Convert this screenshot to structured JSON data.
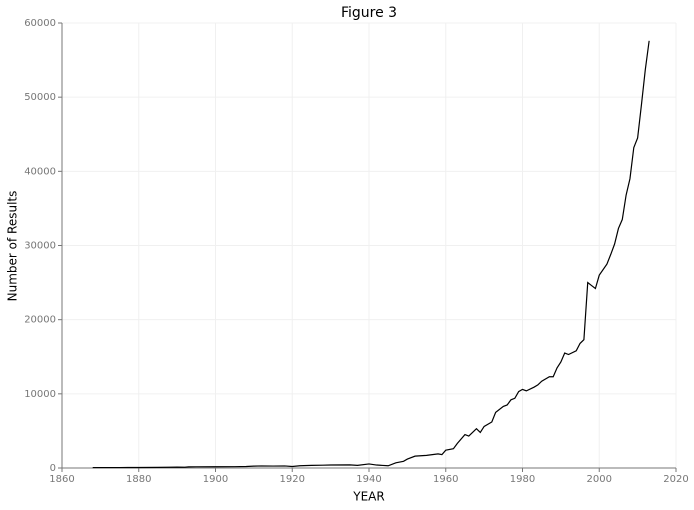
{
  "chart_data": {
    "type": "line",
    "title": "Figure 3",
    "x_label": "YEAR",
    "y_label": "Number of Results",
    "x": [
      1868,
      1875,
      1880,
      1885,
      1888,
      1890,
      1892,
      1893,
      1895,
      1900,
      1905,
      1908,
      1910,
      1912,
      1915,
      1918,
      1920,
      1922,
      1925,
      1928,
      1930,
      1935,
      1937,
      1940,
      1942,
      1945,
      1947,
      1949,
      1950,
      1952,
      1955,
      1958,
      1959,
      1960,
      1962,
      1963,
      1965,
      1966,
      1968,
      1969,
      1970,
      1972,
      1973,
      1975,
      1976,
      1977,
      1978,
      1979,
      1980,
      1981,
      1983,
      1984,
      1985,
      1987,
      1988,
      1989,
      1990,
      1991,
      1992,
      1994,
      1995,
      1996,
      1997,
      1998,
      1999,
      2000,
      2002,
      2003,
      2004,
      2005,
      2006,
      2007,
      2008,
      2009,
      2010,
      2011,
      2012,
      2013
    ],
    "values": [
      60,
      60,
      70,
      80,
      100,
      120,
      100,
      150,
      160,
      170,
      180,
      200,
      250,
      280,
      260,
      280,
      200,
      300,
      350,
      380,
      400,
      420,
      350,
      550,
      400,
      300,
      700,
      900,
      1200,
      1600,
      1700,
      1900,
      1800,
      2400,
      2600,
      3300,
      4500,
      4300,
      5300,
      4800,
      5600,
      6200,
      7500,
      8300,
      8500,
      9200,
      9400,
      10300,
      10600,
      10400,
      10900,
      11200,
      11700,
      12300,
      12300,
      13500,
      14300,
      15500,
      15300,
      15800,
      16800,
      17300,
      25000,
      24600,
      24200,
      26000,
      27500,
      28800,
      30200,
      32300,
      33500,
      36800,
      39000,
      43200,
      44500,
      49000,
      53700,
      57600
    ],
    "color": "#000000",
    "xlim": [
      1860,
      2020
    ],
    "xticks": [
      1860,
      1880,
      1900,
      1920,
      1940,
      1960,
      1980,
      2000,
      2020
    ],
    "ylim": [
      0,
      60000
    ],
    "yticks": [
      0,
      10000,
      20000,
      30000,
      40000,
      50000,
      60000
    ],
    "grid": true
  }
}
